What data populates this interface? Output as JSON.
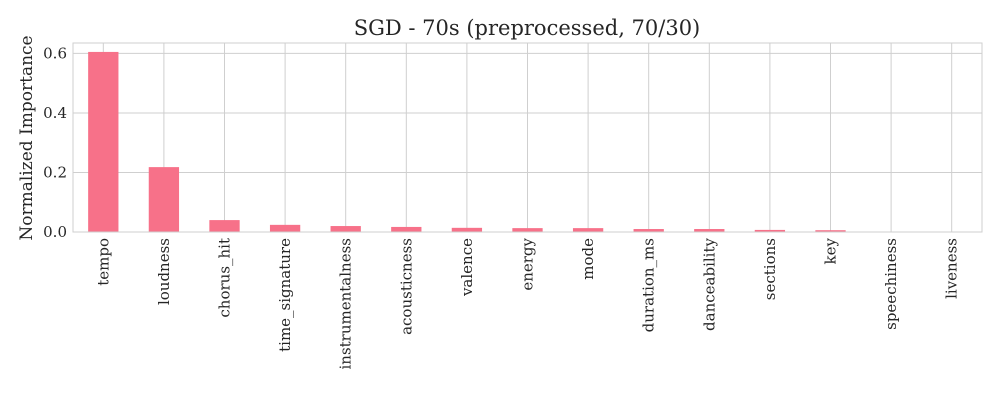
{
  "chart_data": {
    "type": "bar",
    "title": "SGD - 70s (preprocessed, 70/30)",
    "xlabel": "",
    "ylabel": "Normalized Importance",
    "categories": [
      "tempo",
      "loudness",
      "chorus_hit",
      "time_signature",
      "instrumentalness",
      "acousticness",
      "valence",
      "energy",
      "mode",
      "duration_ms",
      "danceability",
      "sections",
      "key",
      "speechiness",
      "liveness"
    ],
    "values": [
      0.605,
      0.218,
      0.04,
      0.024,
      0.02,
      0.017,
      0.014,
      0.013,
      0.013,
      0.01,
      0.01,
      0.007,
      0.006,
      0.001,
      0.001
    ],
    "ylim": [
      0,
      0.635
    ],
    "yticks": [
      "0.0",
      "0.2",
      "0.4",
      "0.6"
    ],
    "grid": true,
    "bar_color": "#f77189"
  }
}
